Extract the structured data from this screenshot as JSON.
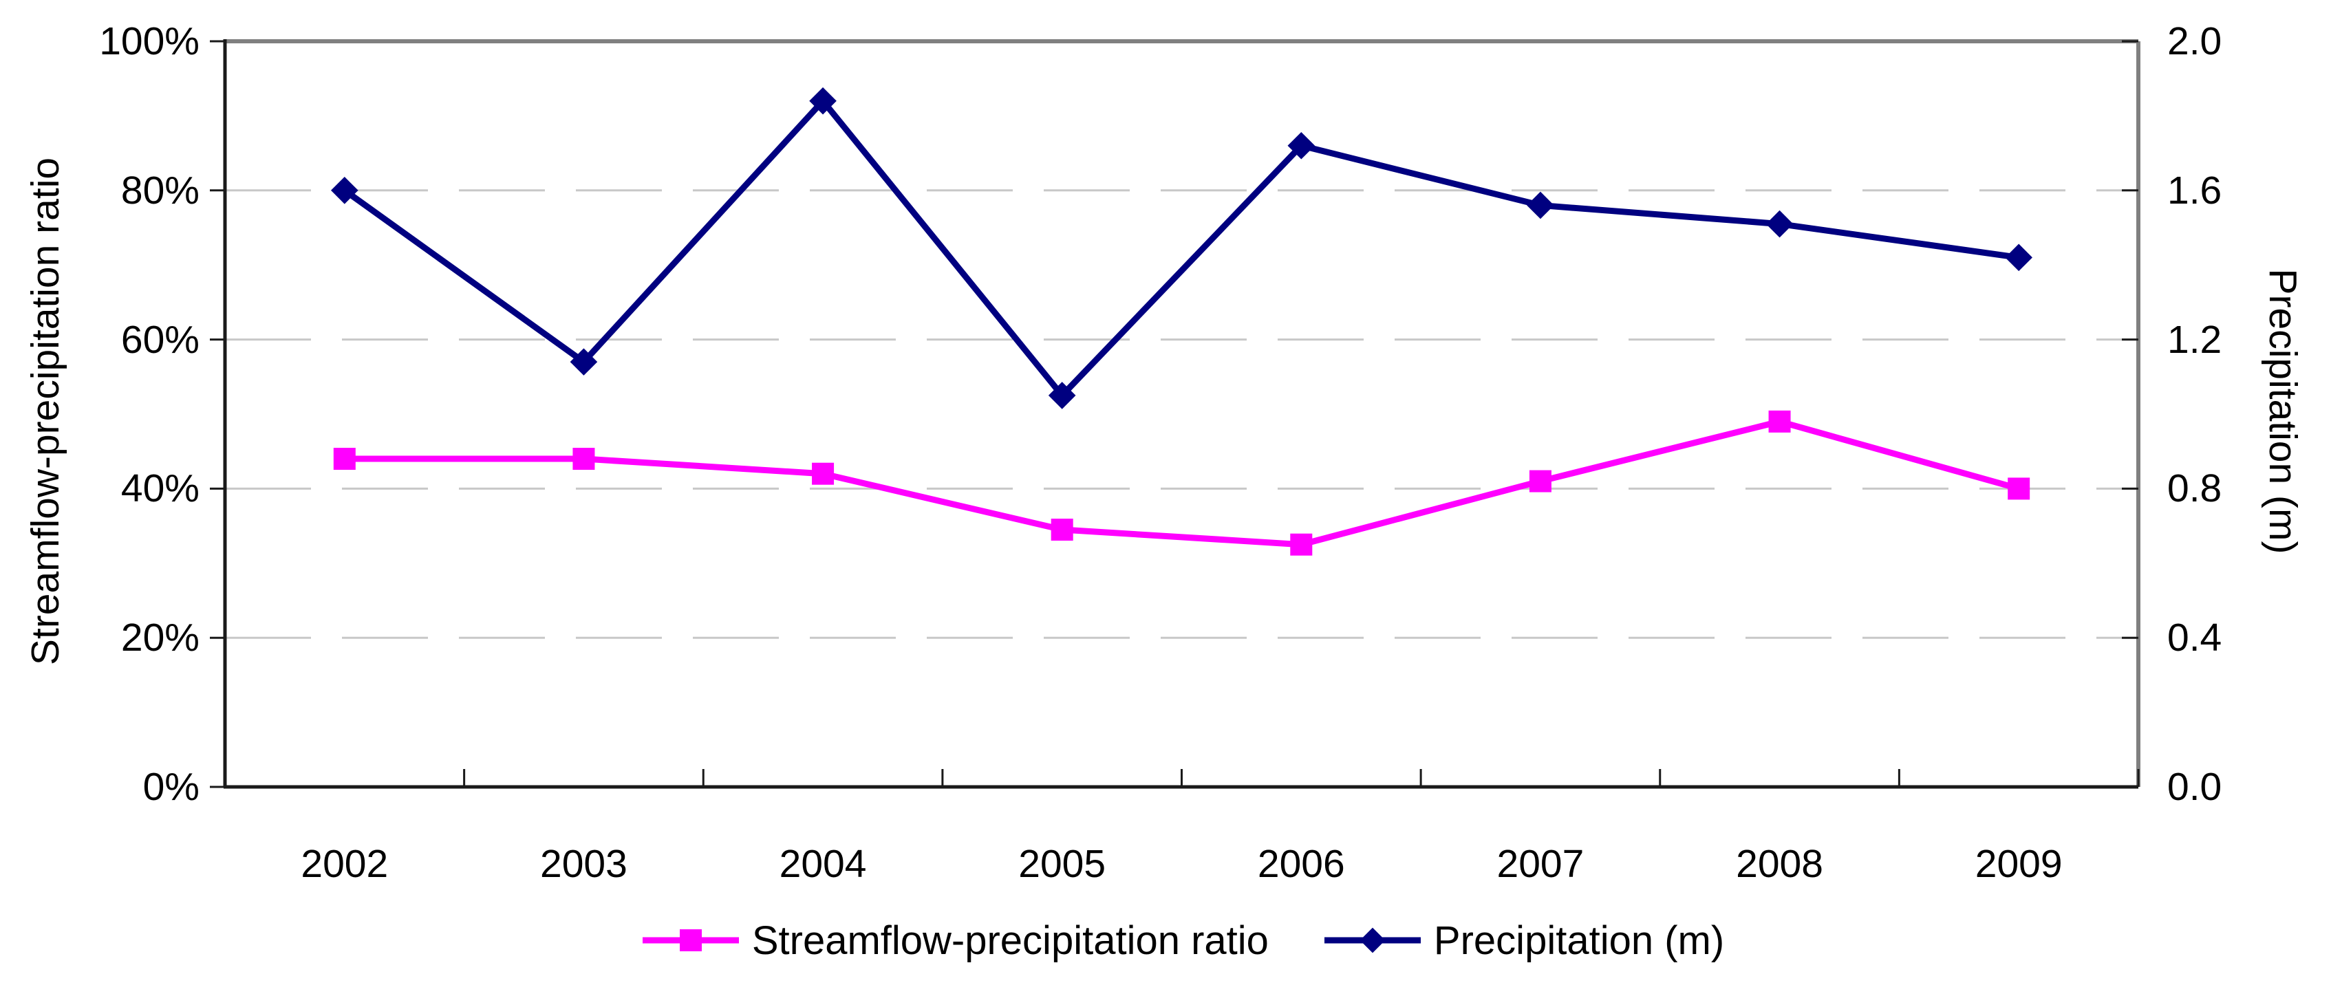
{
  "chart_data": {
    "type": "line",
    "title": "",
    "categories": [
      "2002",
      "2003",
      "2004",
      "2005",
      "2006",
      "2007",
      "2008",
      "2009"
    ],
    "series": [
      {
        "name": "Streamflow-precipitation ratio",
        "axis": "left",
        "color": "#FF00FF",
        "marker": "square",
        "values": [
          44,
          44,
          42,
          34.5,
          32.5,
          41,
          49,
          40
        ],
        "unit": "%"
      },
      {
        "name": "Precipitation (m)",
        "axis": "right",
        "color": "#000080",
        "marker": "diamond",
        "values": [
          1.6,
          1.14,
          1.84,
          1.05,
          1.72,
          1.56,
          1.51,
          1.42
        ],
        "unit": "m"
      }
    ],
    "left_axis": {
      "label": "Streamflow-precipitation ratio",
      "ticks": [
        "0%",
        "20%",
        "40%",
        "60%",
        "80%",
        "100%"
      ],
      "min": 0,
      "max": 100
    },
    "right_axis": {
      "label": "Precipitation (m)",
      "ticks": [
        "0.0",
        "0.4",
        "0.8",
        "1.2",
        "1.6",
        "2.0"
      ],
      "min": 0,
      "max": 2
    },
    "legend_position": "bottom-center",
    "grid": "horizontal-dashed"
  },
  "colors": {
    "series_ratio": "#FF00FF",
    "series_precip": "#000080",
    "gridline": "#c8c8c8",
    "plot_border_gray": "#808080",
    "axis_black": "#1a1a1a",
    "text": "#000000",
    "background": "#ffffff"
  }
}
